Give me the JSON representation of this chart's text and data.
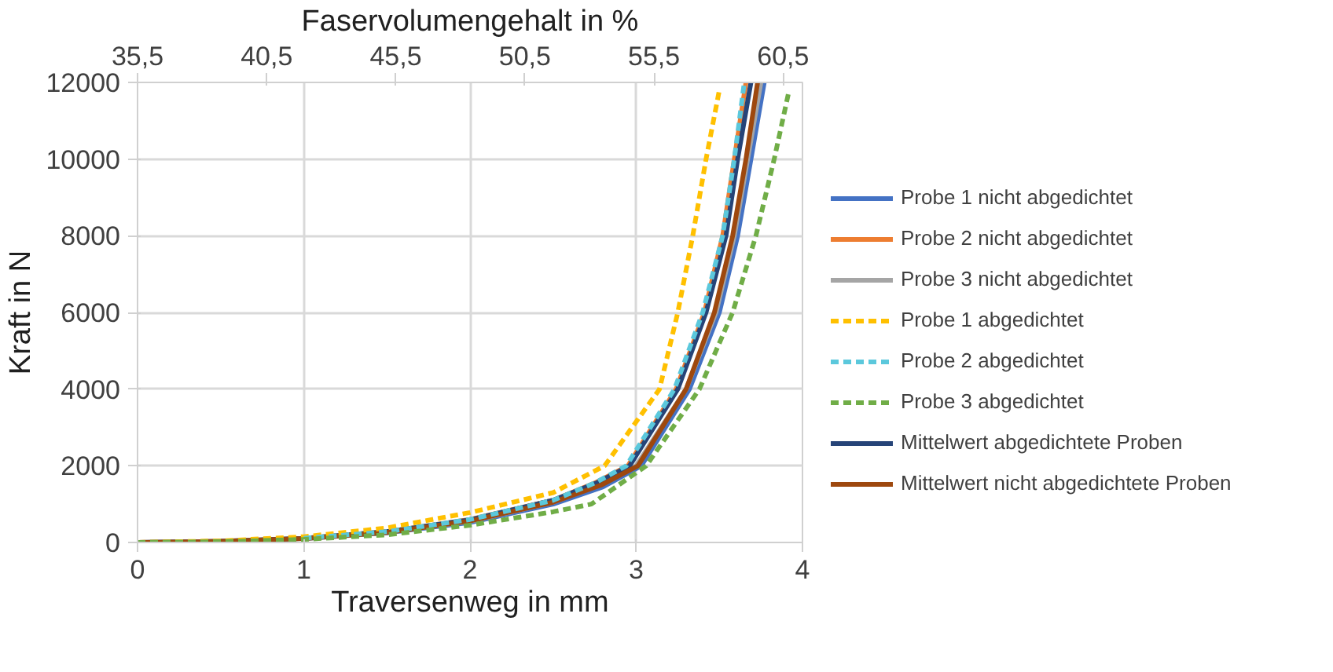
{
  "chart_data": {
    "type": "line",
    "xlabel": "Traversenweg in mm",
    "x2label": "Faservolumengehalt in %",
    "ylabel": "Kraft in N",
    "xlim": [
      0,
      4
    ],
    "xticks": [
      0,
      1,
      2,
      3,
      4
    ],
    "ylim": [
      0,
      12000
    ],
    "yticks": [
      0,
      2000,
      4000,
      6000,
      8000,
      10000,
      12000
    ],
    "x2lim": [
      35.5,
      61.25
    ],
    "x2ticks": [
      {
        "value": 35.5,
        "label": "35,5"
      },
      {
        "value": 40.5,
        "label": "40,5"
      },
      {
        "value": 45.5,
        "label": "45,5"
      },
      {
        "value": 50.5,
        "label": "50,5"
      },
      {
        "value": 55.5,
        "label": "55,5"
      },
      {
        "value": 60.5,
        "label": "60,5"
      }
    ],
    "grid": true,
    "legend": "right",
    "line_style": "solid",
    "series": [
      {
        "name": "Probe 1 nicht abgedichtet",
        "color": "#4472c4",
        "x": [
          1,
          1.5,
          2,
          2.5,
          2.8,
          3.03,
          3.32,
          3.5,
          3.61,
          3.69,
          3.77
        ],
        "values": [
          100,
          250,
          520,
          1000,
          1450,
          2000,
          4000,
          6000,
          8000,
          10000,
          12000
        ]
      },
      {
        "name": "Probe 2 nicht abgedichtet",
        "color": "#ed7d31",
        "x": [
          1,
          1.5,
          2,
          2.5,
          2.75,
          2.95,
          3.24,
          3.41,
          3.52,
          3.59,
          3.66
        ],
        "values": [
          110,
          280,
          600,
          1100,
          1550,
          2000,
          4000,
          6000,
          8000,
          10000,
          12000
        ]
      },
      {
        "name": "Probe 3 nicht abgedichtet",
        "color": "#a5a5a5",
        "x": [
          0,
          0.5,
          1,
          1.5,
          2,
          2.5,
          2.78,
          3.0,
          3.3,
          3.48,
          3.59,
          3.67,
          3.75
        ],
        "values": [
          0,
          30,
          100,
          260,
          550,
          1050,
          1500,
          2000,
          4000,
          6000,
          8000,
          10000,
          12000
        ]
      },
      {
        "name": "Probe 1 abgedichtet",
        "color": "#ffc000",
        "line_style": "dashed",
        "x": [
          0,
          0.5,
          1,
          1.5,
          2,
          2.5,
          2.81,
          3.14,
          3.25,
          3.34,
          3.42,
          3.5
        ],
        "values": [
          0,
          40,
          150,
          380,
          780,
          1300,
          2000,
          4000,
          6000,
          8000,
          10000,
          11800
        ]
      },
      {
        "name": "Probe 2 abgedichtet",
        "color": "#5bc8dc",
        "line_style": "dashed",
        "x": [
          1,
          1.5,
          2,
          2.5,
          2.75,
          2.94,
          3.23,
          3.4,
          3.52,
          3.59,
          3.65
        ],
        "values": [
          110,
          280,
          600,
          1100,
          1550,
          2000,
          4000,
          6000,
          8000,
          10000,
          12000
        ]
      },
      {
        "name": "Probe 3 abgedichtet",
        "color": "#70ad47",
        "line_style": "dashed",
        "x": [
          0,
          0.5,
          1,
          1.5,
          2,
          2.5,
          2.73,
          3.06,
          3.38,
          3.58,
          3.72,
          3.83,
          3.92
        ],
        "values": [
          0,
          20,
          80,
          200,
          450,
          800,
          1000,
          2000,
          4000,
          6000,
          8000,
          10000,
          11800
        ]
      },
      {
        "name": "Mittelwert abgedichtete Proben",
        "color": "#264478",
        "x": [
          0,
          0.5,
          1,
          1.5,
          2,
          2.5,
          2.76,
          2.96,
          3.25,
          3.42,
          3.54,
          3.61,
          3.69
        ],
        "values": [
          0,
          30,
          110,
          280,
          590,
          1100,
          1550,
          2000,
          4000,
          6000,
          8000,
          10000,
          12000
        ]
      },
      {
        "name": "Mittelwert nicht abgedichtete Proben",
        "color": "#9e480e",
        "x": [
          0,
          0.5,
          1,
          1.5,
          2,
          2.5,
          2.79,
          3.01,
          3.3,
          3.47,
          3.58,
          3.66,
          3.73
        ],
        "values": [
          0,
          30,
          100,
          260,
          560,
          1050,
          1500,
          2000,
          4000,
          6000,
          8000,
          10000,
          12000
        ]
      }
    ]
  }
}
